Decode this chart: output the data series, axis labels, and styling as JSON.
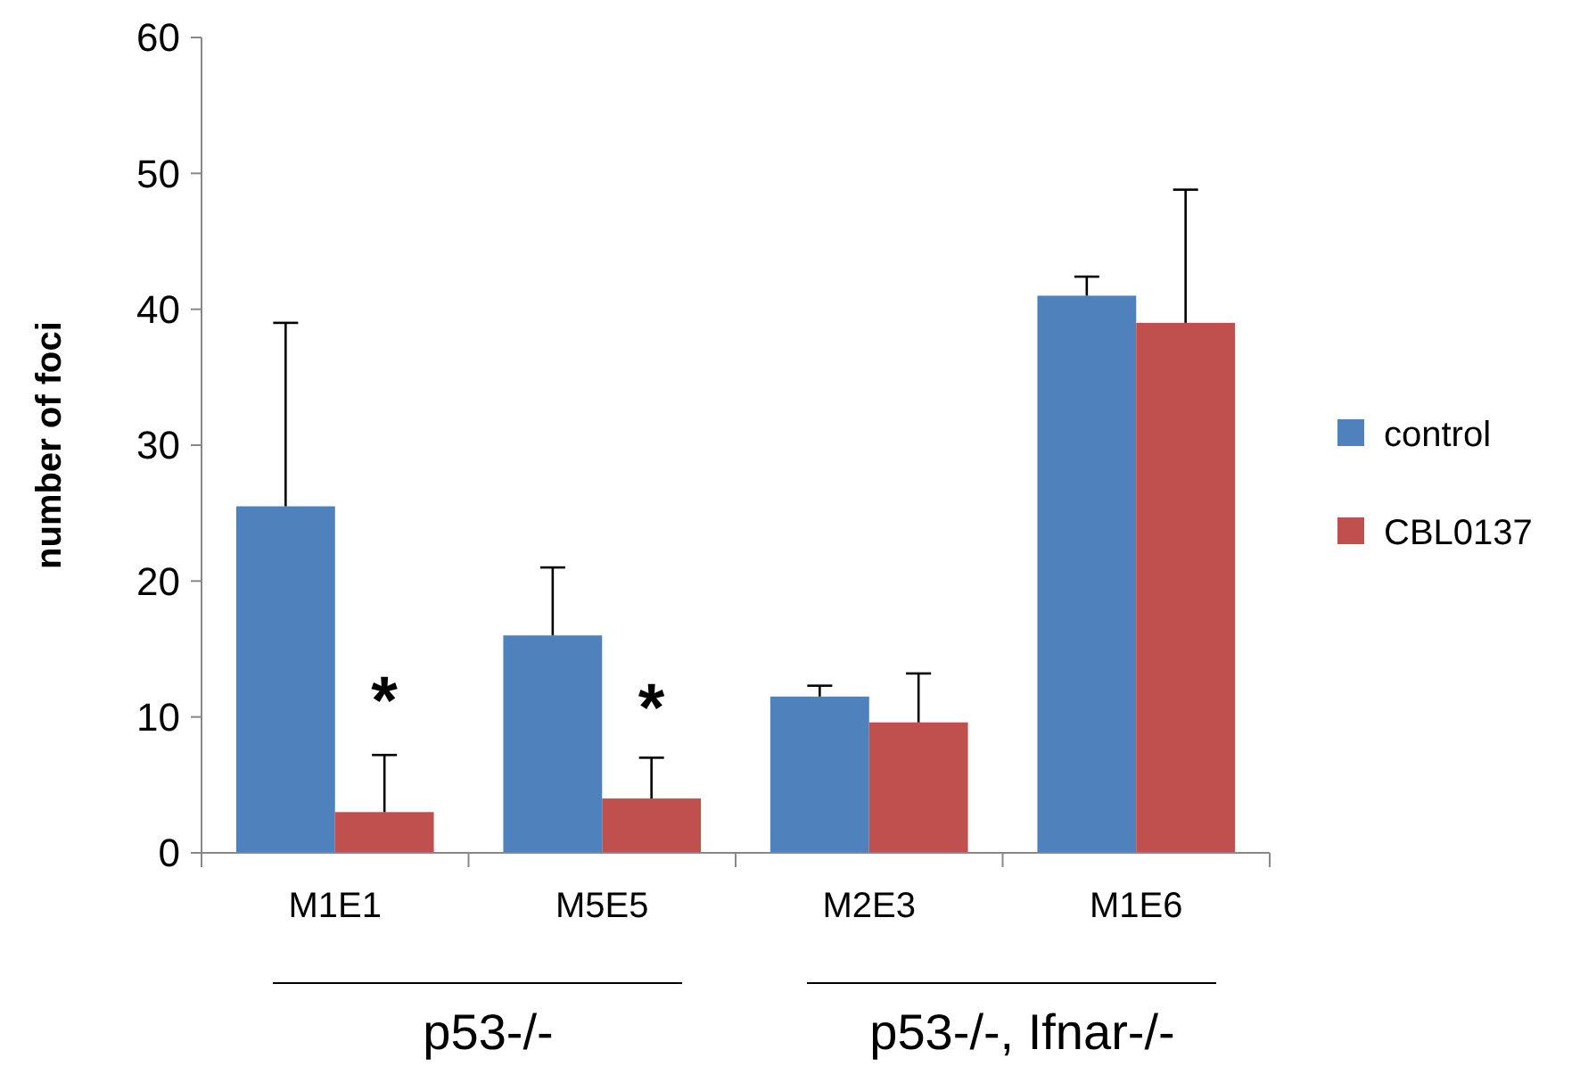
{
  "chart_data": {
    "type": "bar",
    "ylabel": "number of foci",
    "categories": [
      "M1E1",
      "M5E5",
      "M2E3",
      "M1E6"
    ],
    "series": [
      {
        "name": "control",
        "color": "#4f81bd",
        "values": [
          25.5,
          16,
          11.5,
          41
        ],
        "errors": [
          [
            25.5,
            39
          ],
          [
            16,
            21
          ],
          [
            11.5,
            12.3
          ],
          [
            41,
            42.4
          ]
        ]
      },
      {
        "name": "CBL0137",
        "color": "#c0504d",
        "values": [
          3,
          4,
          9.6,
          39
        ],
        "errors": [
          [
            3,
            7.2
          ],
          [
            4,
            7
          ],
          [
            9.6,
            13.2
          ],
          [
            39,
            48.8
          ]
        ]
      }
    ],
    "ylim": [
      0,
      60
    ],
    "yticks": [
      0,
      10,
      20,
      30,
      40,
      50,
      60
    ],
    "grid": false,
    "legend": "right",
    "annotations": [
      {
        "text": "*",
        "x": "M1E1",
        "y": 13
      },
      {
        "text": "*",
        "x": "M5E5",
        "y": 12.5
      },
      "p53-/-",
      "p53-/-, Ifnar-/-"
    ]
  }
}
